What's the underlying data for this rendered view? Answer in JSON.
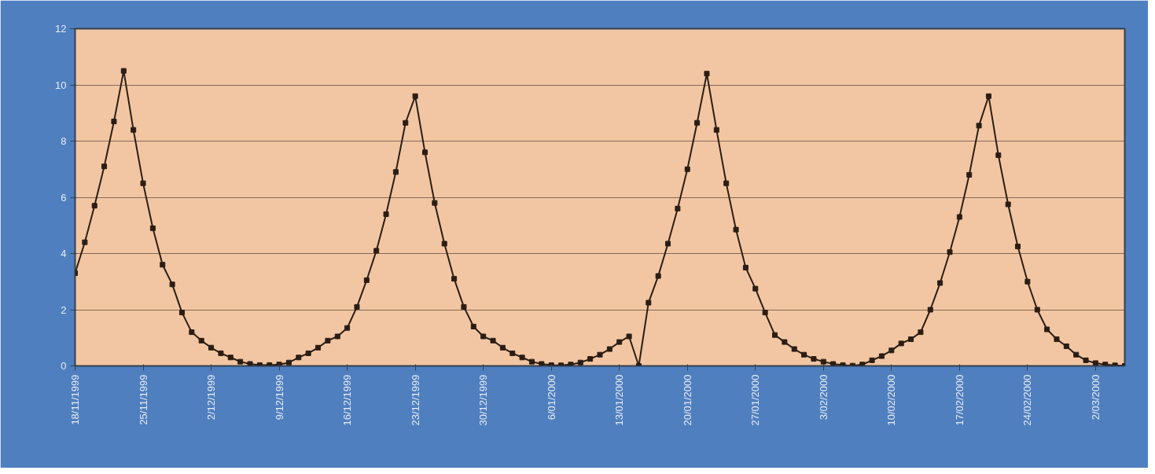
{
  "chart_data": {
    "type": "line",
    "x": [
      "1999-11-18",
      "1999-11-19",
      "1999-11-20",
      "1999-11-21",
      "1999-11-22",
      "1999-11-23",
      "1999-11-24",
      "1999-11-25",
      "1999-11-26",
      "1999-11-27",
      "1999-11-28",
      "1999-11-29",
      "1999-11-30",
      "1999-12-01",
      "1999-12-02",
      "1999-12-03",
      "1999-12-04",
      "1999-12-05",
      "1999-12-06",
      "1999-12-07",
      "1999-12-08",
      "1999-12-09",
      "1999-12-10",
      "1999-12-11",
      "1999-12-12",
      "1999-12-13",
      "1999-12-14",
      "1999-12-15",
      "1999-12-16",
      "1999-12-17",
      "1999-12-18",
      "1999-12-19",
      "1999-12-20",
      "1999-12-21",
      "1999-12-22",
      "1999-12-23",
      "1999-12-24",
      "1999-12-25",
      "1999-12-26",
      "1999-12-27",
      "1999-12-28",
      "1999-12-29",
      "1999-12-30",
      "1999-12-31",
      "2000-01-01",
      "2000-01-02",
      "2000-01-03",
      "2000-01-04",
      "2000-01-05",
      "2000-01-06",
      "2000-01-07",
      "2000-01-08",
      "2000-01-09",
      "2000-01-10",
      "2000-01-11",
      "2000-01-12",
      "2000-01-13",
      "2000-01-14",
      "2000-01-15",
      "2000-01-16",
      "2000-01-17",
      "2000-01-18",
      "2000-01-19",
      "2000-01-20",
      "2000-01-21",
      "2000-01-22",
      "2000-01-23",
      "2000-01-24",
      "2000-01-25",
      "2000-01-26",
      "2000-01-27",
      "2000-01-28",
      "2000-01-29",
      "2000-01-30",
      "2000-01-31",
      "2000-02-01",
      "2000-02-02",
      "2000-02-03",
      "2000-02-04",
      "2000-02-05",
      "2000-02-06",
      "2000-02-07",
      "2000-02-08",
      "2000-02-09",
      "2000-02-10",
      "2000-02-11",
      "2000-02-12",
      "2000-02-13",
      "2000-02-14",
      "2000-02-15",
      "2000-02-16",
      "2000-02-17",
      "2000-02-18",
      "2000-02-19",
      "2000-02-20",
      "2000-02-21",
      "2000-02-22",
      "2000-02-23",
      "2000-02-24",
      "2000-02-25",
      "2000-02-26",
      "2000-02-27",
      "2000-02-28",
      "2000-02-29",
      "2000-03-01",
      "2000-03-02",
      "2000-03-03",
      "2000-03-04",
      "2000-03-05"
    ],
    "series": [
      {
        "color": "#2b1d14",
        "values": [
          3.3,
          4.4,
          5.7,
          7.1,
          8.7,
          10.5,
          8.4,
          6.5,
          4.9,
          3.6,
          2.9,
          1.9,
          1.2,
          0.9,
          0.65,
          0.45,
          0.3,
          0.15,
          0.07,
          0.03,
          0.03,
          0.05,
          0.12,
          0.3,
          0.45,
          0.65,
          0.9,
          1.05,
          1.35,
          2.1,
          3.05,
          4.1,
          5.4,
          6.9,
          8.65,
          9.6,
          7.6,
          5.8,
          4.35,
          3.1,
          2.1,
          1.4,
          1.05,
          0.9,
          0.65,
          0.45,
          0.3,
          0.15,
          0.07,
          0.03,
          0.02,
          0.05,
          0.12,
          0.25,
          0.4,
          0.6,
          0.85,
          1.05,
          0,
          2.25,
          3.2,
          4.35,
          5.6,
          7.0,
          8.65,
          10.4,
          8.4,
          6.5,
          4.85,
          3.5,
          2.75,
          1.9,
          1.1,
          0.85,
          0.6,
          0.4,
          0.25,
          0.15,
          0.07,
          0.03,
          0.01,
          0.05,
          0.2,
          0.35,
          0.55,
          0.8,
          0.95,
          1.2,
          2.0,
          2.95,
          4.05,
          5.3,
          6.8,
          8.55,
          9.6,
          7.5,
          5.75,
          4.25,
          3.0,
          2.0,
          1.3,
          0.95,
          0.7,
          0.4,
          0.2,
          0.1,
          0.05,
          0.02,
          0
        ]
      }
    ],
    "xlim": [
      "1999-11-18",
      "2000-03-05"
    ],
    "xticks": [
      {
        "value": "1999-11-18",
        "label": "18/11/1999"
      },
      {
        "value": "1999-11-25",
        "label": "25/11/1999"
      },
      {
        "value": "1999-12-02",
        "label": "2/12/1999"
      },
      {
        "value": "1999-12-09",
        "label": "9/12/1999"
      },
      {
        "value": "1999-12-16",
        "label": "16/12/1999"
      },
      {
        "value": "1999-12-23",
        "label": "23/12/1999"
      },
      {
        "value": "1999-12-30",
        "label": "30/12/1999"
      },
      {
        "value": "2000-01-06",
        "label": "6/01/2000"
      },
      {
        "value": "2000-01-13",
        "label": "13/01/2000"
      },
      {
        "value": "2000-01-20",
        "label": "20/01/2000"
      },
      {
        "value": "2000-01-27",
        "label": "27/01/2000"
      },
      {
        "value": "2000-02-03",
        "label": "3/02/2000"
      },
      {
        "value": "2000-02-10",
        "label": "10/02/2000"
      },
      {
        "value": "2000-02-17",
        "label": "17/02/2000"
      },
      {
        "value": "2000-02-24",
        "label": "24/02/2000"
      },
      {
        "value": "2000-03-02",
        "label": "2/03/2000"
      }
    ],
    "ylim": [
      0,
      12
    ],
    "yticks": [
      0,
      2,
      4,
      6,
      8,
      10,
      12
    ],
    "grid": "y",
    "marker": "square",
    "line_style": "solid"
  }
}
